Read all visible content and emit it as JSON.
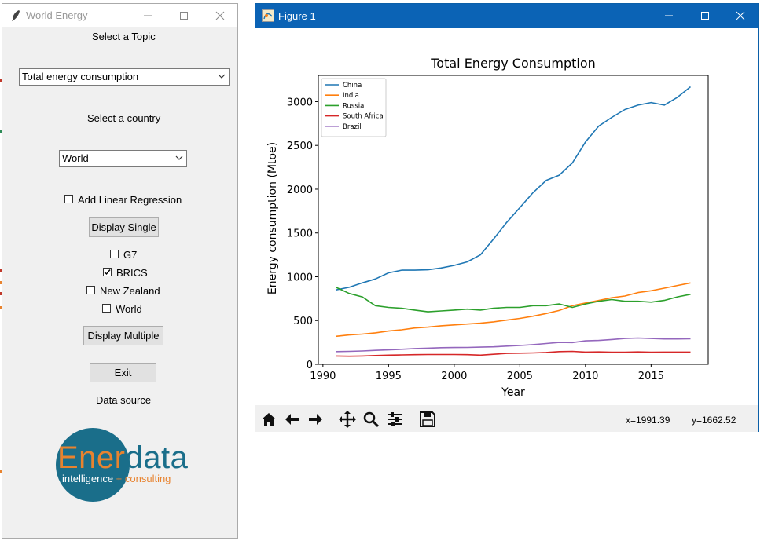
{
  "left_window": {
    "title": "World Energy",
    "topic_label": "Select a Topic",
    "topic_value": "Total energy consumption",
    "country_label": "Select a country",
    "country_value": "World",
    "regression_label": "Add Linear Regression",
    "regression_checked": false,
    "display_single_label": "Display Single",
    "groups": [
      {
        "label": "G7",
        "checked": false
      },
      {
        "label": "BRICS",
        "checked": true
      },
      {
        "label": "New Zealand",
        "checked": false
      },
      {
        "label": "World",
        "checked": false
      }
    ],
    "display_multiple_label": "Display Multiple",
    "exit_label": "Exit",
    "data_source_label": "Data source",
    "logo": {
      "part1": "Ener",
      "part2": "data",
      "tag1": "intelligence",
      "tag2": "+ consulting",
      "circle_color": "#1a6e8a",
      "orange": "#e8832f"
    }
  },
  "figure_window": {
    "title": "Figure 1",
    "toolbar": [
      "home-icon",
      "back-icon",
      "forward-icon",
      "pan-icon",
      "zoom-icon",
      "configure-icon",
      "save-icon"
    ],
    "coord_x": "x=1991.39",
    "coord_y": "y=1662.52"
  },
  "chart_data": {
    "type": "line",
    "title": "Total Energy Consumption",
    "xlabel": "Year",
    "ylabel": "Energy consumption (Mtoe)",
    "xlim": [
      1989.65,
      2019.35
    ],
    "ylim": [
      0,
      3300
    ],
    "xticks": [
      1990,
      1995,
      2000,
      2005,
      2010,
      2015
    ],
    "yticks": [
      0,
      500,
      1000,
      1500,
      2000,
      2500,
      3000
    ],
    "legend_position": "top-left",
    "x": [
      1991,
      1992,
      1993,
      1994,
      1995,
      1996,
      1997,
      1998,
      1999,
      2000,
      2001,
      2002,
      2003,
      2004,
      2005,
      2006,
      2007,
      2008,
      2009,
      2010,
      2011,
      2012,
      2013,
      2014,
      2015,
      2016,
      2017,
      2018
    ],
    "series": [
      {
        "name": "China",
        "color": "#1f77b4",
        "values": [
          850,
          880,
          930,
          975,
          1045,
          1075,
          1075,
          1080,
          1100,
          1130,
          1170,
          1250,
          1430,
          1620,
          1790,
          1960,
          2100,
          2160,
          2300,
          2540,
          2720,
          2820,
          2910,
          2960,
          2990,
          2960,
          3050,
          3170
        ]
      },
      {
        "name": "India",
        "color": "#ff7f0e",
        "values": [
          320,
          335,
          345,
          360,
          380,
          395,
          415,
          425,
          440,
          450,
          460,
          470,
          485,
          505,
          525,
          550,
          580,
          615,
          670,
          700,
          730,
          760,
          780,
          820,
          840,
          870,
          900,
          930
        ]
      },
      {
        "name": "Russia",
        "color": "#2ca02c",
        "values": [
          880,
          810,
          770,
          670,
          650,
          640,
          620,
          600,
          610,
          620,
          630,
          620,
          640,
          650,
          650,
          670,
          670,
          690,
          650,
          690,
          720,
          740,
          720,
          720,
          710,
          730,
          770,
          800
        ]
      },
      {
        "name": "South Africa",
        "color": "#d62728",
        "values": [
          95,
          92,
          95,
          100,
          105,
          108,
          110,
          112,
          112,
          112,
          110,
          105,
          115,
          125,
          127,
          130,
          135,
          145,
          148,
          140,
          142,
          138,
          138,
          142,
          138,
          140,
          140,
          140
        ]
      },
      {
        "name": "Brazil",
        "color": "#9467bd",
        "values": [
          145,
          148,
          152,
          160,
          165,
          172,
          180,
          185,
          190,
          192,
          193,
          196,
          200,
          208,
          215,
          225,
          238,
          250,
          248,
          268,
          273,
          283,
          295,
          300,
          295,
          290,
          290,
          292
        ]
      }
    ]
  }
}
